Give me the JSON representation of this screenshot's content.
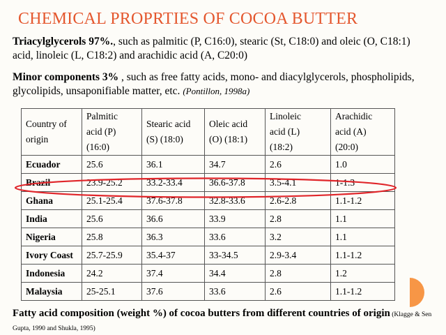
{
  "slide": {
    "title": "CHEMICAL PROPRTIES OF COCOA BUTTER",
    "triacyl": {
      "bold": "Triacylglycerols 97%.",
      "text": ", such as palmitic (P, C16:0), stearic (St, C18:0) and oleic (O, C18:1) acid, linoleic (L, C18:2) and arachidic acid (A, C20:0)"
    },
    "minor": {
      "bold": "Minor components 3%",
      "text": " , such as free fatty acids, mono- and diacylglycerols, phospholipids, glycolipids, unsaponifiable matter, etc.",
      "citation": "(Pontillon, 1998a)"
    },
    "caption": {
      "text": "Fatty acid composition (weight %) of cocoa butters from different countries of origin",
      "source": " (Klagge & Sen Gupta, 1990 and Shukla, 1995)"
    },
    "colors": {
      "title": "#e4572e",
      "highlight_ellipse": "#e0252a",
      "deco": "#f79646"
    }
  },
  "table": {
    "headers": {
      "country": [
        "Country of",
        "origin"
      ],
      "palmitic": [
        "Palmitic",
        "acid (P)",
        "(16:0)"
      ],
      "stearic": [
        "Stearic acid",
        "(S) (18:0)"
      ],
      "oleic": [
        "Oleic acid",
        "(O) (18:1)"
      ],
      "linoleic": [
        "Linoleic",
        "acid (L)",
        "(18:2)"
      ],
      "arachidic": [
        "Arachidic",
        "acid (A)",
        "(20:0)"
      ]
    },
    "rows": [
      {
        "country": "Ecuador",
        "palmitic": "25.6",
        "stearic": "36.1",
        "oleic": "34.7",
        "linoleic": "2.6",
        "arachidic": "1.0"
      },
      {
        "country": "Brazil",
        "palmitic": "23.9-25.2",
        "stearic": "33.2-33.4",
        "oleic": "36.6-37.8",
        "linoleic": "3.5-4.1",
        "arachidic": "1-1.3"
      },
      {
        "country": "Ghana",
        "palmitic": "25.1-25.4",
        "stearic": "37.6-37.8",
        "oleic": "32.8-33.6",
        "linoleic": "2.6-2.8",
        "arachidic": "1.1-1.2"
      },
      {
        "country": "India",
        "palmitic": "25.6",
        "stearic": "36.6",
        "oleic": "33.9",
        "linoleic": "2.8",
        "arachidic": "1.1"
      },
      {
        "country": "Nigeria",
        "palmitic": "25.8",
        "stearic": "36.3",
        "oleic": "33.6",
        "linoleic": "3.2",
        "arachidic": "1.1"
      },
      {
        "country": "Ivory Coast",
        "palmitic": "25.7-25.9",
        "stearic": "35.4-37",
        "oleic": "33-34.5",
        "linoleic": "2.9-3.4",
        "arachidic": "1.1-1.2"
      },
      {
        "country": "Indonesia",
        "palmitic": "24.2",
        "stearic": "37.4",
        "oleic": "34.4",
        "linoleic": "2.8",
        "arachidic": "1.2"
      },
      {
        "country": "Malaysia",
        "palmitic": "25-25.1",
        "stearic": "37.6",
        "oleic": "33.6",
        "linoleic": "2.6",
        "arachidic": "1.1-1.2"
      }
    ]
  }
}
